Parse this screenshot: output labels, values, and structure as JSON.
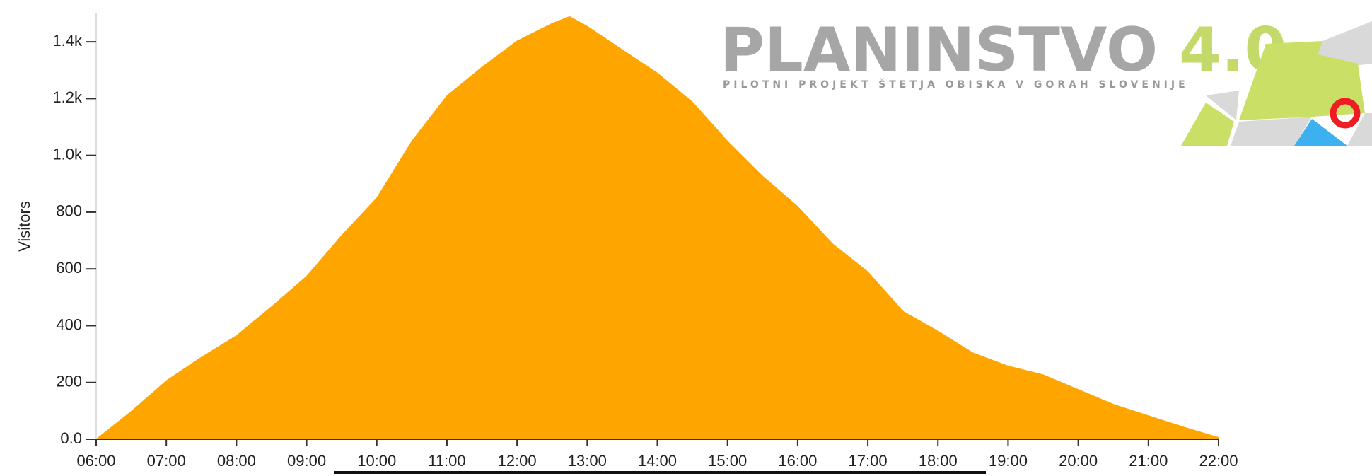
{
  "chart_data": {
    "type": "area",
    "y_label": "Visitors",
    "x": [
      6,
      6.5,
      7,
      7.5,
      8,
      8.5,
      9,
      9.5,
      10,
      10.5,
      11,
      11.5,
      12,
      12.5,
      12.75,
      13,
      13.5,
      14,
      14.5,
      15,
      15.5,
      16,
      16.5,
      17,
      17.5,
      18,
      18.5,
      19,
      19.5,
      20,
      20.5,
      21,
      21.5,
      22
    ],
    "values": [
      0,
      98,
      206,
      289,
      365,
      467,
      574,
      718,
      850,
      1050,
      1210,
      1311,
      1403,
      1465,
      1489,
      1455,
      1372,
      1290,
      1188,
      1050,
      927,
      820,
      688,
      590,
      451,
      381,
      304,
      258,
      227,
      175,
      123,
      83,
      43,
      6
    ],
    "color": "#ffa500",
    "xlim": [
      6,
      22
    ],
    "xticks": [
      {
        "value": 6,
        "label": "06:00"
      },
      {
        "value": 7,
        "label": "07:00"
      },
      {
        "value": 8,
        "label": "08:00"
      },
      {
        "value": 9,
        "label": "09:00"
      },
      {
        "value": 10,
        "label": "10:00"
      },
      {
        "value": 11,
        "label": "11:00"
      },
      {
        "value": 12,
        "label": "12:00"
      },
      {
        "value": 13,
        "label": "13:00"
      },
      {
        "value": 14,
        "label": "14:00"
      },
      {
        "value": 15,
        "label": "15:00"
      },
      {
        "value": 16,
        "label": "16:00"
      },
      {
        "value": 17,
        "label": "17:00"
      },
      {
        "value": 18,
        "label": "18:00"
      },
      {
        "value": 19,
        "label": "19:00"
      },
      {
        "value": 20,
        "label": "20:00"
      },
      {
        "value": 21,
        "label": "21:00"
      },
      {
        "value": 22,
        "label": "22:00"
      }
    ],
    "ylim": [
      0,
      1500
    ],
    "yticks": [
      {
        "value": 0,
        "label": "0.0"
      },
      200,
      400,
      600,
      800,
      {
        "value": 1000,
        "label": "1.0k"
      },
      {
        "value": 1200,
        "label": "1.2k"
      },
      {
        "value": 1400,
        "label": "1.4k"
      }
    ]
  },
  "logo": {
    "title": "PLANINSTVO",
    "version": "4.0",
    "subtitle": "PILOTNI PROJEKT ŠTETJA OBISKA V GORAH SLOVENIJE"
  }
}
